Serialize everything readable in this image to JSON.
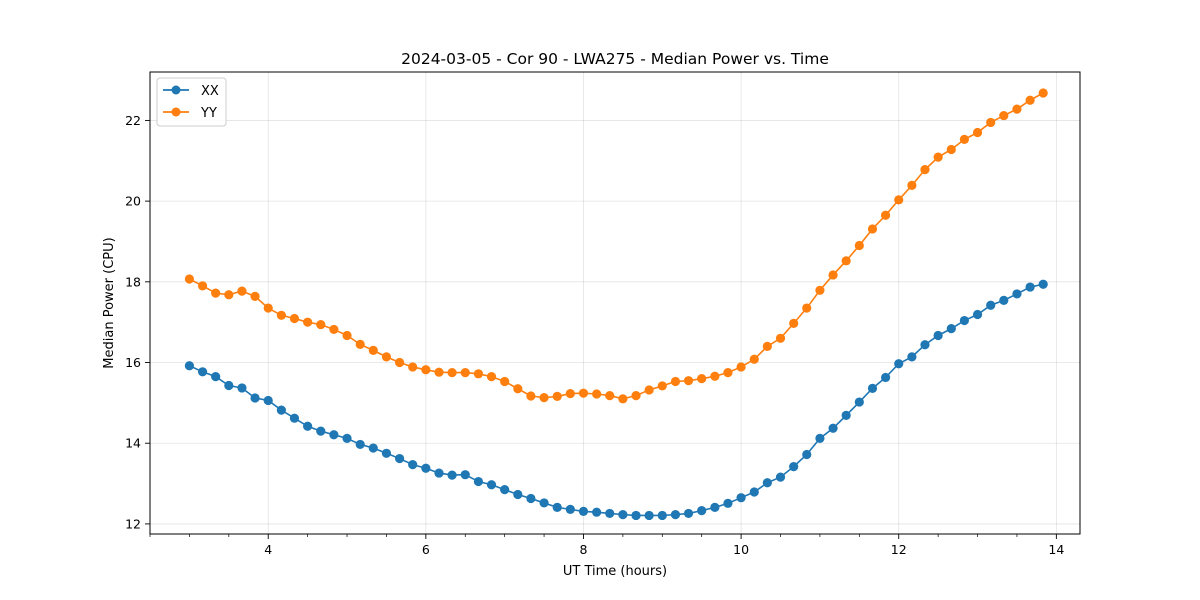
{
  "chart_data": {
    "type": "line",
    "title": "2024-03-05 - Cor 90 - LWA275 - Median Power vs. Time",
    "xlabel": "UT Time (hours)",
    "ylabel": "Median Power (CPU)",
    "xlim": [
      2.5,
      14.3
    ],
    "ylim": [
      11.75,
      23.2
    ],
    "xticks": [
      4,
      6,
      8,
      10,
      12,
      14
    ],
    "yticks": [
      12,
      14,
      16,
      18,
      20,
      22
    ],
    "grid": true,
    "legend_position": "top-left",
    "x": [
      3.0,
      3.167,
      3.333,
      3.5,
      3.667,
      3.833,
      4.0,
      4.167,
      4.333,
      4.5,
      4.667,
      4.833,
      5.0,
      5.167,
      5.333,
      5.5,
      5.667,
      5.833,
      6.0,
      6.167,
      6.333,
      6.5,
      6.667,
      6.833,
      7.0,
      7.167,
      7.333,
      7.5,
      7.667,
      7.833,
      8.0,
      8.167,
      8.333,
      8.5,
      8.667,
      8.833,
      9.0,
      9.167,
      9.333,
      9.5,
      9.667,
      9.833,
      10.0,
      10.167,
      10.333,
      10.5,
      10.667,
      10.833,
      11.0,
      11.167,
      11.333,
      11.5,
      11.667,
      11.833,
      12.0,
      12.167,
      12.333,
      12.5,
      12.667,
      12.833,
      13.0,
      13.167,
      13.333,
      13.5,
      13.667,
      13.833
    ],
    "series": [
      {
        "name": "XX",
        "color": "#1f77b4",
        "values": [
          15.92,
          15.77,
          15.65,
          15.43,
          15.37,
          15.12,
          15.06,
          14.82,
          14.62,
          14.42,
          14.3,
          14.21,
          14.12,
          13.97,
          13.88,
          13.75,
          13.62,
          13.47,
          13.38,
          13.26,
          13.21,
          13.22,
          13.05,
          12.97,
          12.85,
          12.73,
          12.63,
          12.52,
          12.41,
          12.36,
          12.31,
          12.29,
          12.26,
          12.23,
          12.21,
          12.21,
          12.21,
          12.23,
          12.26,
          12.33,
          12.41,
          12.51,
          12.65,
          12.79,
          13.02,
          13.16,
          13.42,
          13.72,
          14.12,
          14.37,
          14.69,
          15.02,
          15.36,
          15.63,
          15.97,
          16.14,
          16.44,
          16.67,
          16.84,
          17.04,
          17.19,
          17.42,
          17.54,
          17.7,
          17.87,
          17.94
        ]
      },
      {
        "name": "YY",
        "color": "#ff7f0e",
        "values": [
          18.07,
          17.9,
          17.72,
          17.68,
          17.77,
          17.64,
          17.35,
          17.17,
          17.09,
          17.0,
          16.94,
          16.82,
          16.67,
          16.45,
          16.3,
          16.14,
          16.0,
          15.89,
          15.82,
          15.76,
          15.75,
          15.75,
          15.72,
          15.65,
          15.53,
          15.35,
          15.17,
          15.13,
          15.16,
          15.23,
          15.24,
          15.22,
          15.18,
          15.1,
          15.18,
          15.32,
          15.42,
          15.53,
          15.55,
          15.6,
          15.66,
          15.75,
          15.89,
          16.08,
          16.4,
          16.6,
          16.97,
          17.35,
          17.79,
          18.17,
          18.52,
          18.9,
          19.31,
          19.65,
          20.03,
          20.39,
          20.78,
          21.09,
          21.28,
          21.53,
          21.7,
          21.95,
          22.12,
          22.28,
          22.5,
          22.68
        ]
      }
    ]
  }
}
